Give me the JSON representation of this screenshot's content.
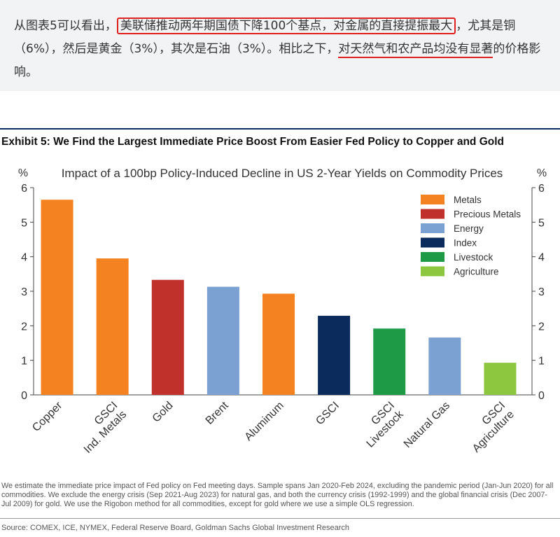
{
  "article": {
    "part1": "从图表5可以看出，",
    "highlight1": "美联储推动两年期国债下降100个基点，对金属的直接提振最大",
    "part2": "，尤其是铜（6%），然后是黄金（3%），其次是石油（3%）。相比之下，",
    "highlight2": "对天然气和农产品均没有显著",
    "part3": "的价格影响。"
  },
  "exhibit": {
    "title": "Exhibit 5: We Find the Largest Immediate Price Boost From Easier Fed Policy to Copper and Gold"
  },
  "chart_data": {
    "type": "bar",
    "title": "Impact of a 100bp Policy-Induced Decline in US 2-Year Yields on Commodity Prices",
    "ylabel_left": "%",
    "ylabel_right": "%",
    "ylim": [
      0,
      6
    ],
    "yticks": [
      0,
      1,
      2,
      3,
      4,
      5,
      6
    ],
    "grid": false,
    "legend_position": "top-right",
    "legend": [
      {
        "label": "Metals",
        "color": "#f58220"
      },
      {
        "label": "Precious Metals",
        "color": "#c0312b"
      },
      {
        "label": "Energy",
        "color": "#7ba1d2"
      },
      {
        "label": "Index",
        "color": "#0a2b5b"
      },
      {
        "label": "Livestock",
        "color": "#1e9a47"
      },
      {
        "label": "Agriculture",
        "color": "#8dc63f"
      }
    ],
    "bars": [
      {
        "label": "Copper",
        "value": 5.65,
        "group": "Metals",
        "color": "#f58220"
      },
      {
        "label": "GSCI\nInd. Metals",
        "value": 3.95,
        "group": "Metals",
        "color": "#f58220"
      },
      {
        "label": "Gold",
        "value": 3.33,
        "group": "Precious Metals",
        "color": "#c0312b"
      },
      {
        "label": "Brent",
        "value": 3.13,
        "group": "Energy",
        "color": "#7ba1d2"
      },
      {
        "label": "Aluminum",
        "value": 2.93,
        "group": "Metals",
        "color": "#f58220"
      },
      {
        "label": "GSCI",
        "value": 2.29,
        "group": "Index",
        "color": "#0a2b5b"
      },
      {
        "label": "GSCI\nLivestock",
        "value": 1.92,
        "group": "Livestock",
        "color": "#1e9a47"
      },
      {
        "label": "Natural Gas",
        "value": 1.66,
        "group": "Energy",
        "color": "#7ba1d2"
      },
      {
        "label": "GSCI\nAgriculture",
        "value": 0.93,
        "group": "Agriculture",
        "color": "#8dc63f"
      }
    ]
  },
  "footnote": "We estimate the immediate price impact of Fed policy on Fed meeting days. Sample spans Jan 2020-Feb 2024, excluding the pandemic period (Jan-Jun 2020) for all commodities. We exclude the energy crisis (Sep 2021-Aug 2023) for natural gas, and both the currency crisis (1992-1999) and the global financial crisis (Dec 2007-Jul 2009) for gold. We use the Rigobon method for all commodities, except for gold where we use a simple OLS regression.",
  "source": "Source: COMEX, ICE, NYMEX, Federal Reserve Board, Goldman Sachs Global Investment Research"
}
